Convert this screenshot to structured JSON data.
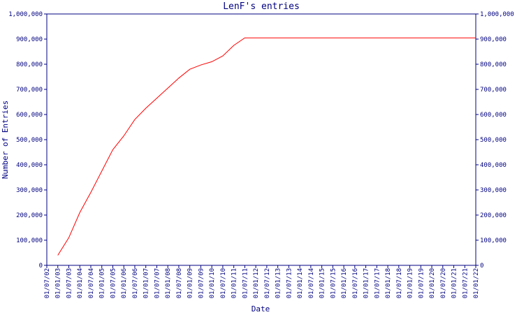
{
  "chart_data": {
    "type": "line",
    "title": "LenF's entries",
    "x_label": "Date",
    "y_label": "Number of Entries",
    "x": [
      "01/07/02",
      "01/01/03",
      "01/07/03",
      "01/01/04",
      "01/07/04",
      "01/01/05",
      "01/07/05",
      "01/01/06",
      "01/07/06",
      "01/01/07",
      "01/07/07",
      "01/01/08",
      "01/07/08",
      "01/01/09",
      "01/07/09",
      "01/01/10",
      "01/07/10",
      "01/01/11",
      "01/07/11",
      "01/01/12",
      "01/07/12",
      "01/01/13",
      "01/07/13",
      "01/01/14",
      "01/07/14",
      "01/01/15",
      "01/07/15",
      "01/01/16",
      "01/07/16",
      "01/01/17",
      "01/07/17",
      "01/01/18",
      "01/07/18",
      "01/01/19",
      "01/07/19",
      "01/01/20",
      "01/07/20",
      "01/01/21",
      "01/07/21",
      "01/01/22"
    ],
    "series": [
      {
        "name": "LenF",
        "color": "#ff0000",
        "values": [
          null,
          40000,
          110000,
          210000,
          290000,
          375000,
          460000,
          515000,
          580000,
          625000,
          665000,
          705000,
          745000,
          780000,
          797000,
          810000,
          833000,
          875000,
          905000,
          905000,
          905000,
          905000,
          905000,
          905000,
          905000,
          905000,
          905000,
          905000,
          905000,
          905000,
          905000,
          905000,
          905000,
          905000,
          905000,
          905000,
          905000,
          905000,
          905000,
          905000
        ]
      }
    ],
    "ylim": [
      0,
      1000000
    ],
    "yticks": [
      0,
      {
        "value": 100000,
        "label": "100,000"
      },
      {
        "value": 200000,
        "label": "200,000"
      },
      {
        "value": 300000,
        "label": "300,000"
      },
      {
        "value": 400000,
        "label": "400,000"
      },
      {
        "value": 500000,
        "label": "500,000"
      },
      {
        "value": 600000,
        "label": "600,000"
      },
      {
        "value": 700000,
        "label": "700,000"
      },
      {
        "value": 800000,
        "label": "800,000"
      },
      {
        "value": 900000,
        "label": "900,000"
      },
      {
        "value": 1000000,
        "label": "1,000,000"
      }
    ],
    "axis_color": "#000080"
  }
}
